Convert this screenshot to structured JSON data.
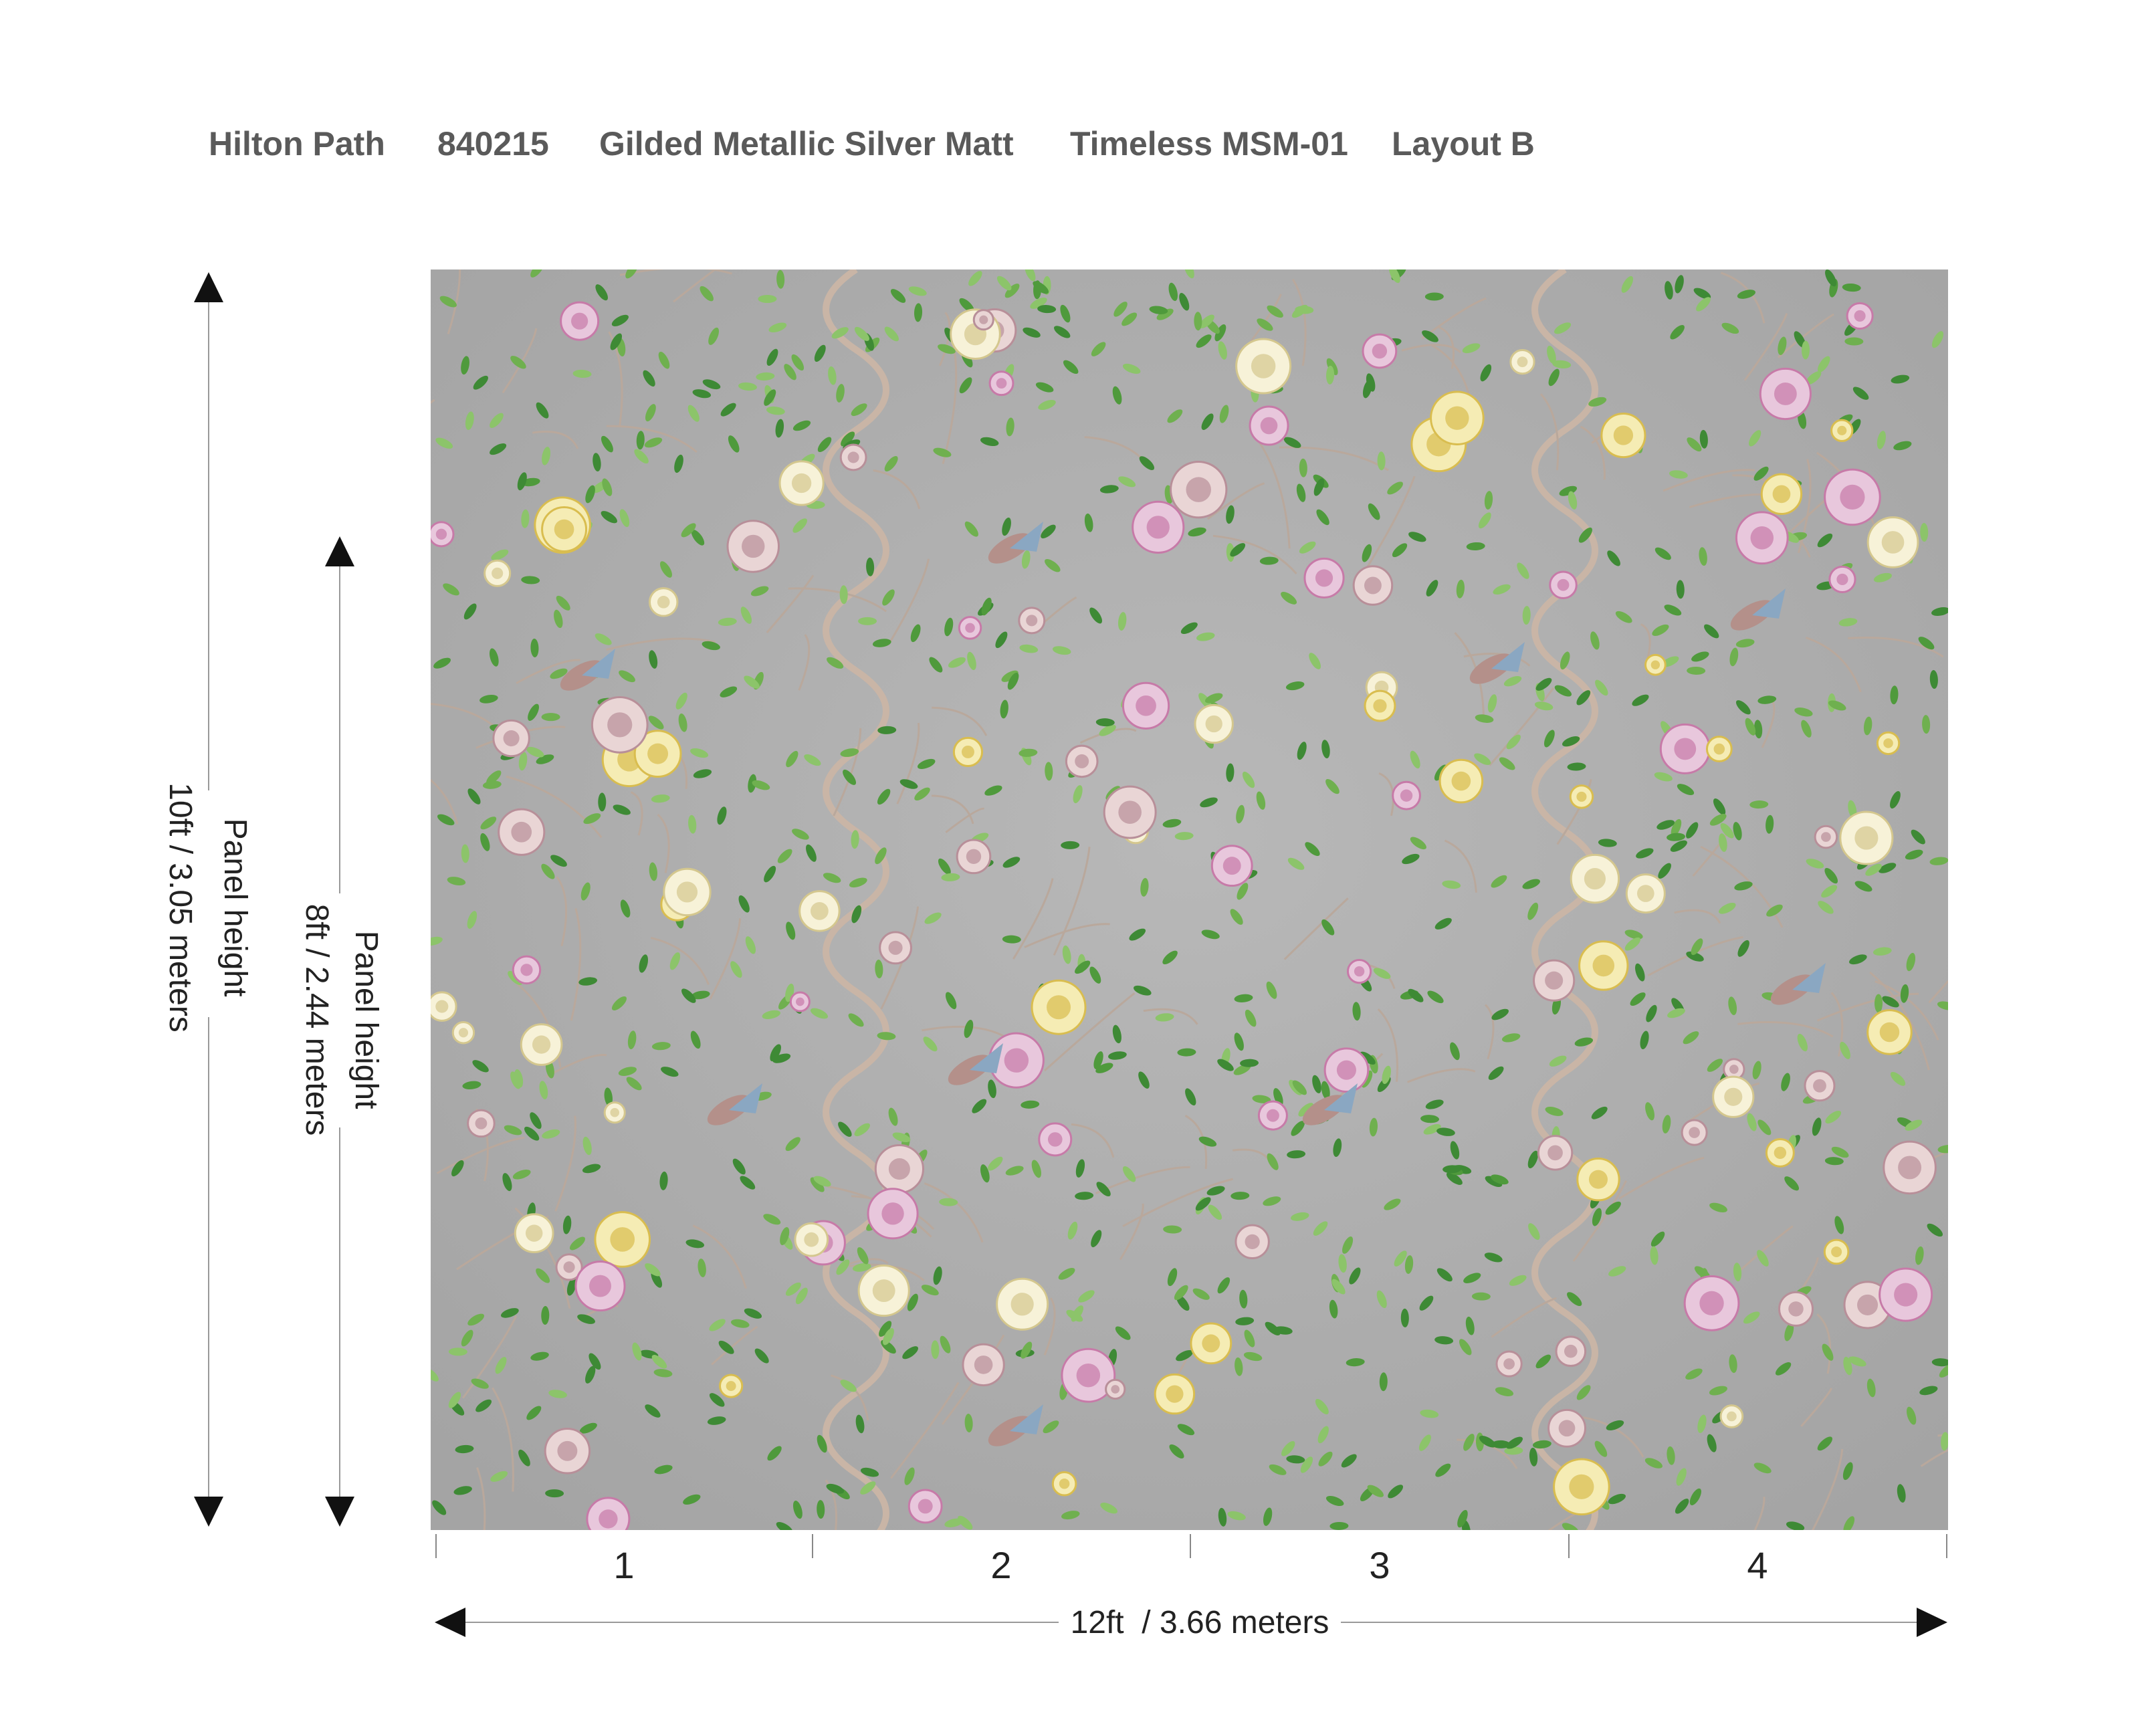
{
  "header": {
    "items": [
      "Hilton Path",
      "840215",
      "Gilded Metallic Silver Matt",
      "Timeless MSM-01",
      "Layout B"
    ]
  },
  "panels": [
    "1",
    "2",
    "3",
    "4"
  ],
  "width_dimension": "12ft  / 3.66 meters",
  "height_dimensions": [
    {
      "title": "Panel height",
      "size": "10ft / 3.05 meters"
    },
    {
      "title": "Panel height",
      "size": "8ft / 2.44 meters"
    }
  ]
}
